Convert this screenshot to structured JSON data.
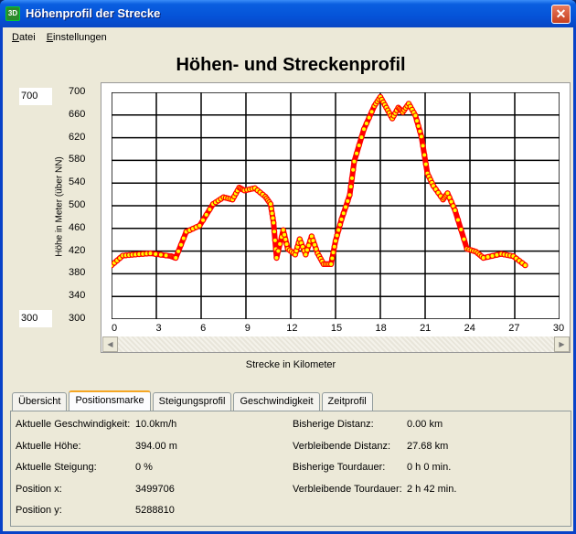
{
  "window": {
    "title": "Höhenprofil der Strecke",
    "icon": "3D",
    "close": "✕"
  },
  "menu": [
    {
      "label": "Datei",
      "acc": "D",
      "rest": "atei"
    },
    {
      "label": "Einstellungen",
      "acc": "E",
      "rest": "instellungen"
    }
  ],
  "chart_title": "Höhen- und Streckenprofil",
  "range_inputs": {
    "max": "700",
    "min": "300"
  },
  "colors": {
    "line": "#ff0000",
    "marker": "#ffff00"
  },
  "chart_data": {
    "type": "scatter",
    "title": "Höhen- und Streckenprofil",
    "xlabel": "Strecke in Kilometer",
    "ylabel": "Höhe in Meter (über NN)",
    "xlim": [
      0,
      30
    ],
    "ylim": [
      300,
      700
    ],
    "xticks": [
      "0",
      "3",
      "6",
      "9",
      "12",
      "15",
      "18",
      "21",
      "24",
      "27",
      "30"
    ],
    "yticks": [
      "700",
      "660",
      "620",
      "580",
      "540",
      "500",
      "460",
      "420",
      "380",
      "340",
      "300"
    ],
    "grid": true,
    "x": [
      0,
      0.75,
      1.6,
      2.6,
      4.0,
      4.3,
      5.0,
      5.9,
      6.8,
      7.5,
      8.1,
      8.55,
      8.9,
      9.6,
      10.3,
      10.65,
      10.85,
      11.05,
      11.5,
      11.8,
      12.3,
      12.6,
      13.0,
      13.4,
      13.8,
      14.2,
      14.7,
      15.0,
      15.4,
      15.95,
      16.25,
      16.9,
      17.6,
      18.0,
      18.4,
      18.8,
      19.2,
      19.5,
      19.9,
      20.35,
      20.75,
      21.15,
      21.55,
      22.2,
      22.5,
      23.0,
      23.8,
      24.4,
      24.9,
      26.1,
      26.9,
      27.7
    ],
    "y": [
      395,
      412,
      414,
      416,
      411,
      408,
      454,
      465,
      503,
      515,
      511,
      532,
      527,
      531,
      516,
      503,
      470,
      408,
      457,
      424,
      414,
      441,
      414,
      446,
      416,
      397,
      397,
      438,
      476,
      519,
      578,
      635,
      676,
      692,
      673,
      654,
      673,
      665,
      680,
      659,
      622,
      557,
      535,
      511,
      522,
      492,
      424,
      419,
      408,
      415,
      411,
      395
    ]
  },
  "tabs": [
    "Übersicht",
    "Positionsmarke",
    "Steigungsprofil",
    "Geschwindigkeit",
    "Zeitprofil"
  ],
  "active_tab": 1,
  "info_left": [
    {
      "label": "Aktuelle Geschwindigkeit:",
      "value": "10.0km/h"
    },
    {
      "label": "Aktuelle Höhe:",
      "value": "394.00 m"
    },
    {
      "label": "Aktuelle Steigung:",
      "value": "0 %"
    },
    {
      "label": "Position x:",
      "value": "3499706"
    },
    {
      "label": "Position y:",
      "value": "5288810"
    }
  ],
  "info_right": [
    {
      "label": "Bisherige Distanz:",
      "value": "0.00 km"
    },
    {
      "label": "Verbleibende Distanz:",
      "value": "27.68 km"
    },
    {
      "label": "Bisherige Tourdauer:",
      "value": "0 h 0 min."
    },
    {
      "label": "Verbleibende Tourdauer:",
      "value": "2 h 42 min."
    }
  ]
}
